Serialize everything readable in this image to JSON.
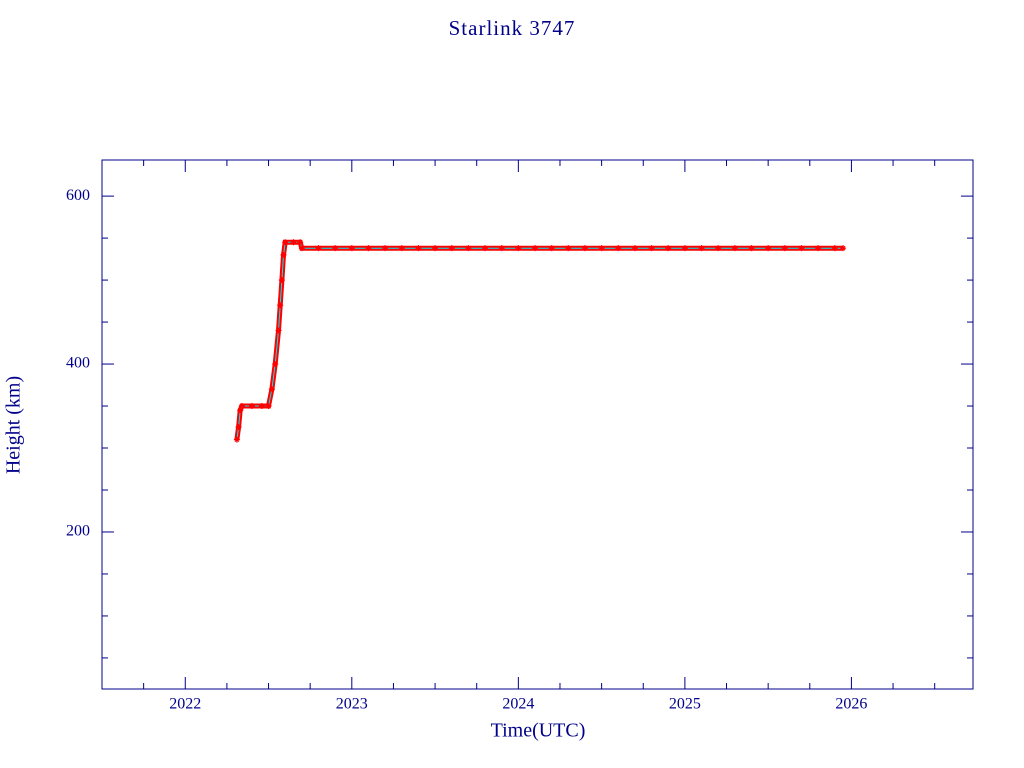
{
  "chart_data": {
    "type": "line",
    "title": "Starlink 3747",
    "x_label": "Time(UTC)",
    "y_label": "Height (km)",
    "xlim": [
      2021.5,
      2026.73
    ],
    "ylim": [
      13,
      643
    ],
    "xticks": [
      2022,
      2023,
      2024,
      2025,
      2026
    ],
    "xminorticks": [
      2021.75,
      2022.25,
      2022.5,
      2022.75,
      2023.25,
      2023.5,
      2023.75,
      2024.25,
      2024.5,
      2024.75,
      2025.25,
      2025.5,
      2025.75,
      2026.25,
      2026.5
    ],
    "yticks": [
      200,
      400,
      600
    ],
    "yminorticks": [
      50,
      100,
      150,
      250,
      300,
      350,
      450,
      500,
      550
    ],
    "series": [
      {
        "color": "#ff0000",
        "line_color": "#00e5ee",
        "x": [
          2022.31,
          2022.32,
          2022.33,
          2022.34,
          2022.4,
          2022.46,
          2022.5,
          2022.52,
          2022.54,
          2022.56,
          2022.57,
          2022.58,
          2022.59,
          2022.6,
          2022.65,
          2022.69,
          2022.7,
          2022.8,
          2022.9,
          2023.0,
          2023.1,
          2023.2,
          2023.3,
          2023.4,
          2023.5,
          2023.6,
          2023.7,
          2023.8,
          2023.9,
          2024.0,
          2024.1,
          2024.2,
          2024.3,
          2024.4,
          2024.5,
          2024.6,
          2024.7,
          2024.8,
          2024.9,
          2025.0,
          2025.1,
          2025.2,
          2025.3,
          2025.4,
          2025.5,
          2025.6,
          2025.7,
          2025.8,
          2025.9,
          2025.95
        ],
        "values": [
          310,
          325,
          345,
          350,
          350,
          350,
          350,
          370,
          400,
          440,
          470,
          500,
          530,
          545,
          545,
          545,
          538,
          538,
          538,
          538,
          538,
          538,
          538,
          538,
          538,
          538,
          538,
          538,
          538,
          538,
          538,
          538,
          538,
          538,
          538,
          538,
          538,
          538,
          538,
          538,
          538,
          538,
          538,
          538,
          538,
          538,
          538,
          538,
          538,
          538
        ]
      }
    ]
  }
}
